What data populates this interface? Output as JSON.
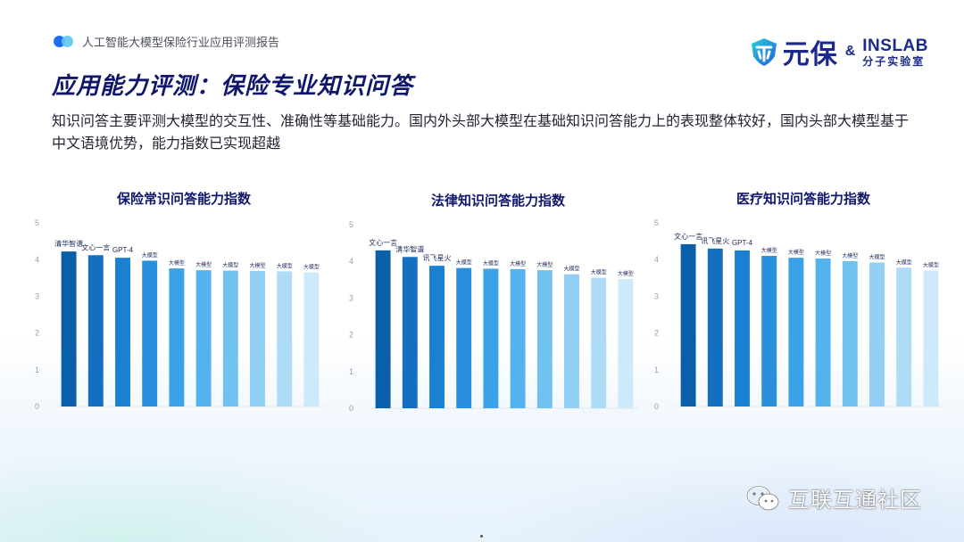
{
  "header": {
    "report_title": "人工智能大模型保险行业应用评测报告"
  },
  "logos": {
    "brand_name": "元保",
    "amp": "&",
    "partner_en": "INSLAB",
    "partner_cn": "分子实验室"
  },
  "page": {
    "title": "应用能力评测：保险专业知识问答",
    "intro": "知识问答主要评测大模型的交互性、准确性等基础能力。国内外头部大模型在基础知识问答能力上的表现整体较好，国内头部大模型基于中文语境优势，能力指数已实现超越"
  },
  "colors": {
    "bars": [
      "#0b5fa8",
      "#146fc0",
      "#1a80d2",
      "#2a90dd",
      "#3aa2e6",
      "#54b2ec",
      "#72c2f0",
      "#91d0f4",
      "#aedcf7",
      "#cde9fa"
    ]
  },
  "chart_data": [
    {
      "type": "bar",
      "title": "保险常识问答能力指数",
      "ylim": [
        0,
        5
      ],
      "yticks": [
        "0",
        "1",
        "2",
        "3",
        "4",
        "5"
      ],
      "grid": false,
      "categories": [
        "清华智谱",
        "文心一言",
        "GPT-4",
        "大模型",
        "大模型",
        "大模型",
        "大模型",
        "大模型",
        "大模型",
        "大模型"
      ],
      "values": [
        4.22,
        4.12,
        4.05,
        3.97,
        3.76,
        3.71,
        3.7,
        3.69,
        3.68,
        3.65
      ]
    },
    {
      "type": "bar",
      "title": "法律知识问答能力指数",
      "ylim": [
        0,
        5
      ],
      "yticks": [
        "0",
        "1",
        "2",
        "3",
        "4",
        "5"
      ],
      "grid": false,
      "categories": [
        "文心一言",
        "清华智谱",
        "讯飞星火",
        "大模型",
        "大模型",
        "大模型",
        "大模型",
        "大模型",
        "大模型",
        "大模型"
      ],
      "values": [
        4.3,
        4.12,
        3.88,
        3.82,
        3.8,
        3.79,
        3.76,
        3.65,
        3.55,
        3.52
      ]
    },
    {
      "type": "bar",
      "title": "医疗知识问答能力指数",
      "ylim": [
        0,
        5
      ],
      "yticks": [
        "0",
        "1",
        "2",
        "3",
        "4",
        "5"
      ],
      "grid": false,
      "categories": [
        "文心一言",
        "讯飞星火",
        "GPT-4",
        "大模型",
        "大模型",
        "大模型",
        "大模型",
        "大模型",
        "大模型",
        "大模型"
      ],
      "values": [
        4.42,
        4.3,
        4.25,
        4.1,
        4.05,
        4.03,
        3.96,
        3.92,
        3.78,
        3.7
      ]
    }
  ],
  "watermark": {
    "text": "互联互通社区"
  }
}
